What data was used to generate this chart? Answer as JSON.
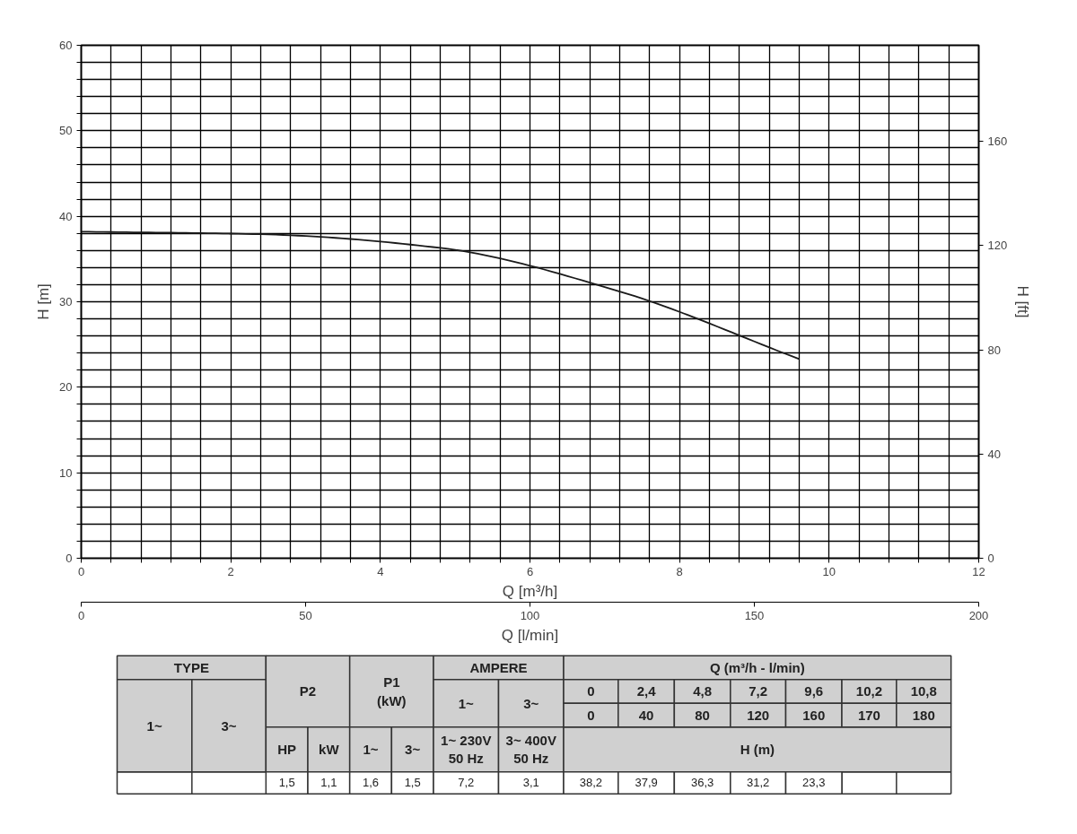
{
  "chart_data": {
    "type": "line",
    "xlabel": "Q [m³/h]",
    "ylabel": "H [m]",
    "y2label": "H [ft]",
    "x2label": "Q [l/min]",
    "xlim": [
      0,
      12
    ],
    "ylim": [
      0,
      60
    ],
    "x2lim": [
      0,
      200
    ],
    "y2lim": [
      0,
      196.85
    ],
    "xticks": [
      0,
      {
        "value": 0.4,
        "label": null
      },
      {
        "value": 0.8,
        "label": null
      },
      {
        "value": 1.2,
        "label": null
      },
      {
        "value": 1.6,
        "label": null
      },
      2,
      {
        "value": 2.4,
        "label": null
      },
      {
        "value": 2.8,
        "label": null
      },
      {
        "value": 3.2,
        "label": null
      },
      {
        "value": 3.6,
        "label": null
      },
      4,
      {
        "value": 4.4,
        "label": null
      },
      {
        "value": 4.8,
        "label": null
      },
      {
        "value": 5.2,
        "label": null
      },
      {
        "value": 5.6,
        "label": null
      },
      6,
      {
        "value": 6.4,
        "label": null
      },
      {
        "value": 6.8,
        "label": null
      },
      {
        "value": 7.2,
        "label": null
      },
      {
        "value": 7.6,
        "label": null
      },
      8,
      {
        "value": 8.4,
        "label": null
      },
      {
        "value": 8.8,
        "label": null
      },
      {
        "value": 9.2,
        "label": null
      },
      {
        "value": 9.6,
        "label": null
      },
      10,
      {
        "value": 10.4,
        "label": null
      },
      {
        "value": 10.8,
        "label": null
      },
      {
        "value": 11.2,
        "label": null
      },
      {
        "value": 11.6,
        "label": null
      },
      12
    ],
    "yticks": [
      0,
      {
        "value": 2,
        "label": null
      },
      {
        "value": 4,
        "label": null
      },
      {
        "value": 6,
        "label": null
      },
      {
        "value": 8,
        "label": null
      },
      10,
      {
        "value": 12,
        "label": null
      },
      {
        "value": 14,
        "label": null
      },
      {
        "value": 16,
        "label": null
      },
      {
        "value": 18,
        "label": null
      },
      20,
      {
        "value": 22,
        "label": null
      },
      {
        "value": 24,
        "label": null
      },
      {
        "value": 26,
        "label": null
      },
      {
        "value": 28,
        "label": null
      },
      30,
      {
        "value": 32,
        "label": null
      },
      {
        "value": 34,
        "label": null
      },
      {
        "value": 36,
        "label": null
      },
      {
        "value": 38,
        "label": null
      },
      40,
      {
        "value": 42,
        "label": null
      },
      {
        "value": 44,
        "label": null
      },
      {
        "value": 46,
        "label": null
      },
      {
        "value": 48,
        "label": null
      },
      50,
      {
        "value": 52,
        "label": null
      },
      {
        "value": 54,
        "label": null
      },
      {
        "value": 56,
        "label": null
      },
      {
        "value": 58,
        "label": null
      },
      60
    ],
    "x2ticks": [
      0,
      50,
      100,
      150,
      200
    ],
    "y2ticks": [
      0,
      40,
      80,
      120,
      160
    ],
    "grid": true,
    "x": [
      0,
      2.4,
      4.8,
      7.2,
      9.6
    ],
    "series": [
      {
        "color": "#1a1a1a",
        "values": [
          38.2,
          37.9,
          36.3,
          31.2,
          23.3
        ]
      }
    ],
    "annotations": [
      "TYPE",
      "1~",
      "3~",
      "P2",
      "HP",
      "kW",
      "P1\n(kW)",
      "1~",
      "3~",
      "AMPERE",
      "1~",
      "3~",
      "1~ 230V\n50 Hz",
      "3~ 400V\n50 Hz",
      "Q (m³/h - l/min)",
      "H (m)",
      "1,5",
      "1,1",
      "1,6",
      "1,5",
      "7,2",
      "3,1",
      "0",
      "40",
      "80",
      "120",
      "160",
      "170",
      "180",
      "0",
      "2,4",
      "4,8",
      "7,2",
      "9,6",
      "10,2",
      "10,8",
      "38,2",
      "37,9",
      "36,3",
      "31,2",
      "23,3"
    ]
  }
}
